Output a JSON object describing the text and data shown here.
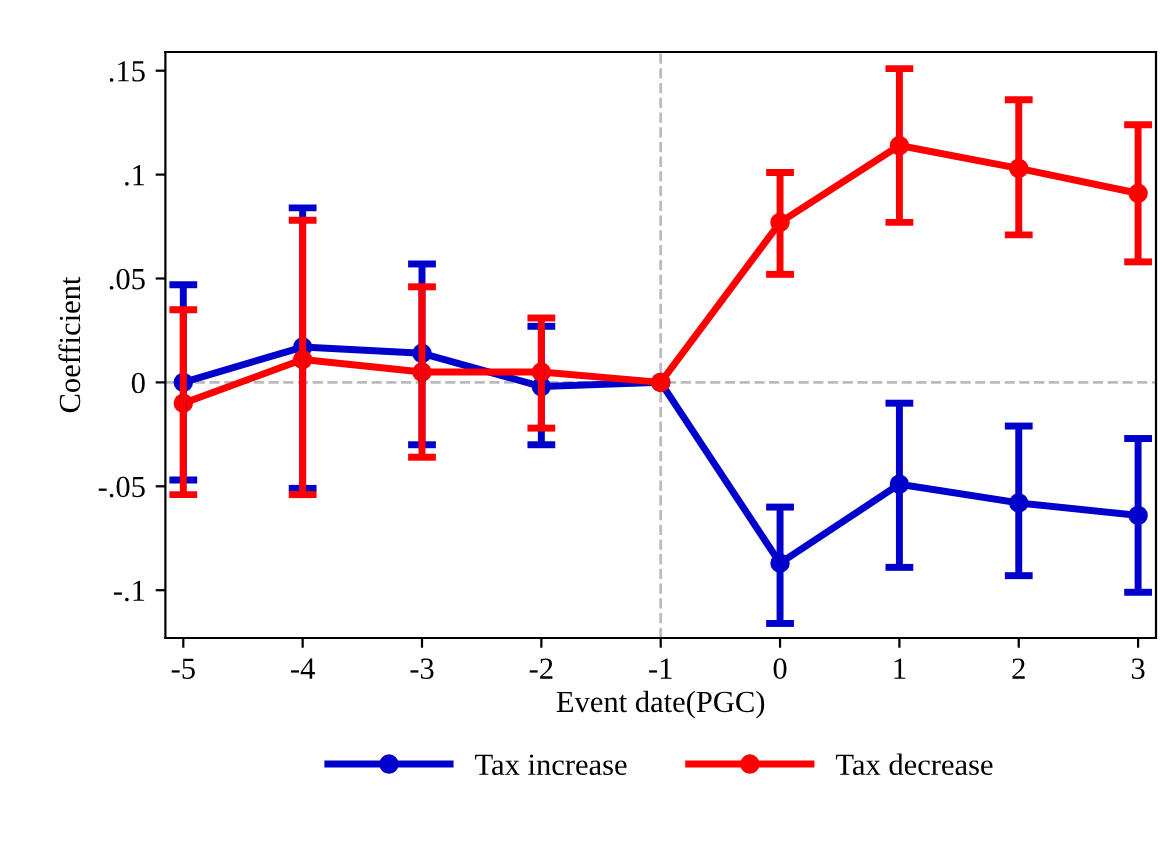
{
  "chart_data": {
    "type": "line",
    "xlabel": "Event date(PGC)",
    "ylabel": "Coefficient",
    "x": [
      -5,
      -4,
      -3,
      -2,
      -1,
      0,
      1,
      2,
      3
    ],
    "series": [
      {
        "name": "Tax increase",
        "color": "#0000cc",
        "values": [
          0,
          0.017,
          0.014,
          -0.002,
          0,
          -0.087,
          -0.049,
          -0.058,
          -0.064
        ],
        "errors": [
          [
            -0.047,
            0.047
          ],
          [
            -0.051,
            0.084
          ],
          [
            -0.03,
            0.057
          ],
          [
            -0.03,
            0.027
          ],
          null,
          [
            -0.116,
            -0.06
          ],
          [
            -0.089,
            -0.01
          ],
          [
            -0.093,
            -0.021
          ],
          [
            -0.101,
            -0.027
          ]
        ]
      },
      {
        "name": "Tax decrease",
        "color": "#ff0000",
        "values": [
          -0.01,
          0.011,
          0.005,
          0.005,
          0,
          0.077,
          0.114,
          0.103,
          0.091
        ],
        "errors": [
          [
            -0.054,
            0.035
          ],
          [
            -0.054,
            0.078
          ],
          [
            -0.036,
            0.046
          ],
          [
            -0.022,
            0.031
          ],
          null,
          [
            0.052,
            0.101
          ],
          [
            0.077,
            0.151
          ],
          [
            0.071,
            0.136
          ],
          [
            0.058,
            0.124
          ]
        ]
      }
    ],
    "xlim": [
      -5.15,
      3.15
    ],
    "xticks": [
      -5,
      -4,
      -3,
      -2,
      -1,
      0,
      1,
      2,
      3
    ],
    "ylim": [
      -0.123,
      0.159
    ],
    "yticks": [
      {
        "value": -0.1,
        "label": "-.1"
      },
      {
        "value": -0.05,
        "label": "-.05"
      },
      {
        "value": 0,
        "label": "0"
      },
      {
        "value": 0.05,
        "label": ".05"
      },
      {
        "value": 0.1,
        "label": ".1"
      },
      {
        "value": 0.15,
        "label": ".15"
      }
    ],
    "ref_lines": [
      {
        "axis": "y",
        "value": 0,
        "color": "#bbbbbb",
        "line_style": "dashed"
      },
      {
        "axis": "x",
        "value": -1,
        "color": "#bbbbbb",
        "line_style": "dashed"
      }
    ],
    "grid": false,
    "legend": "bottom",
    "marker": "circle",
    "line_style": "solid"
  }
}
